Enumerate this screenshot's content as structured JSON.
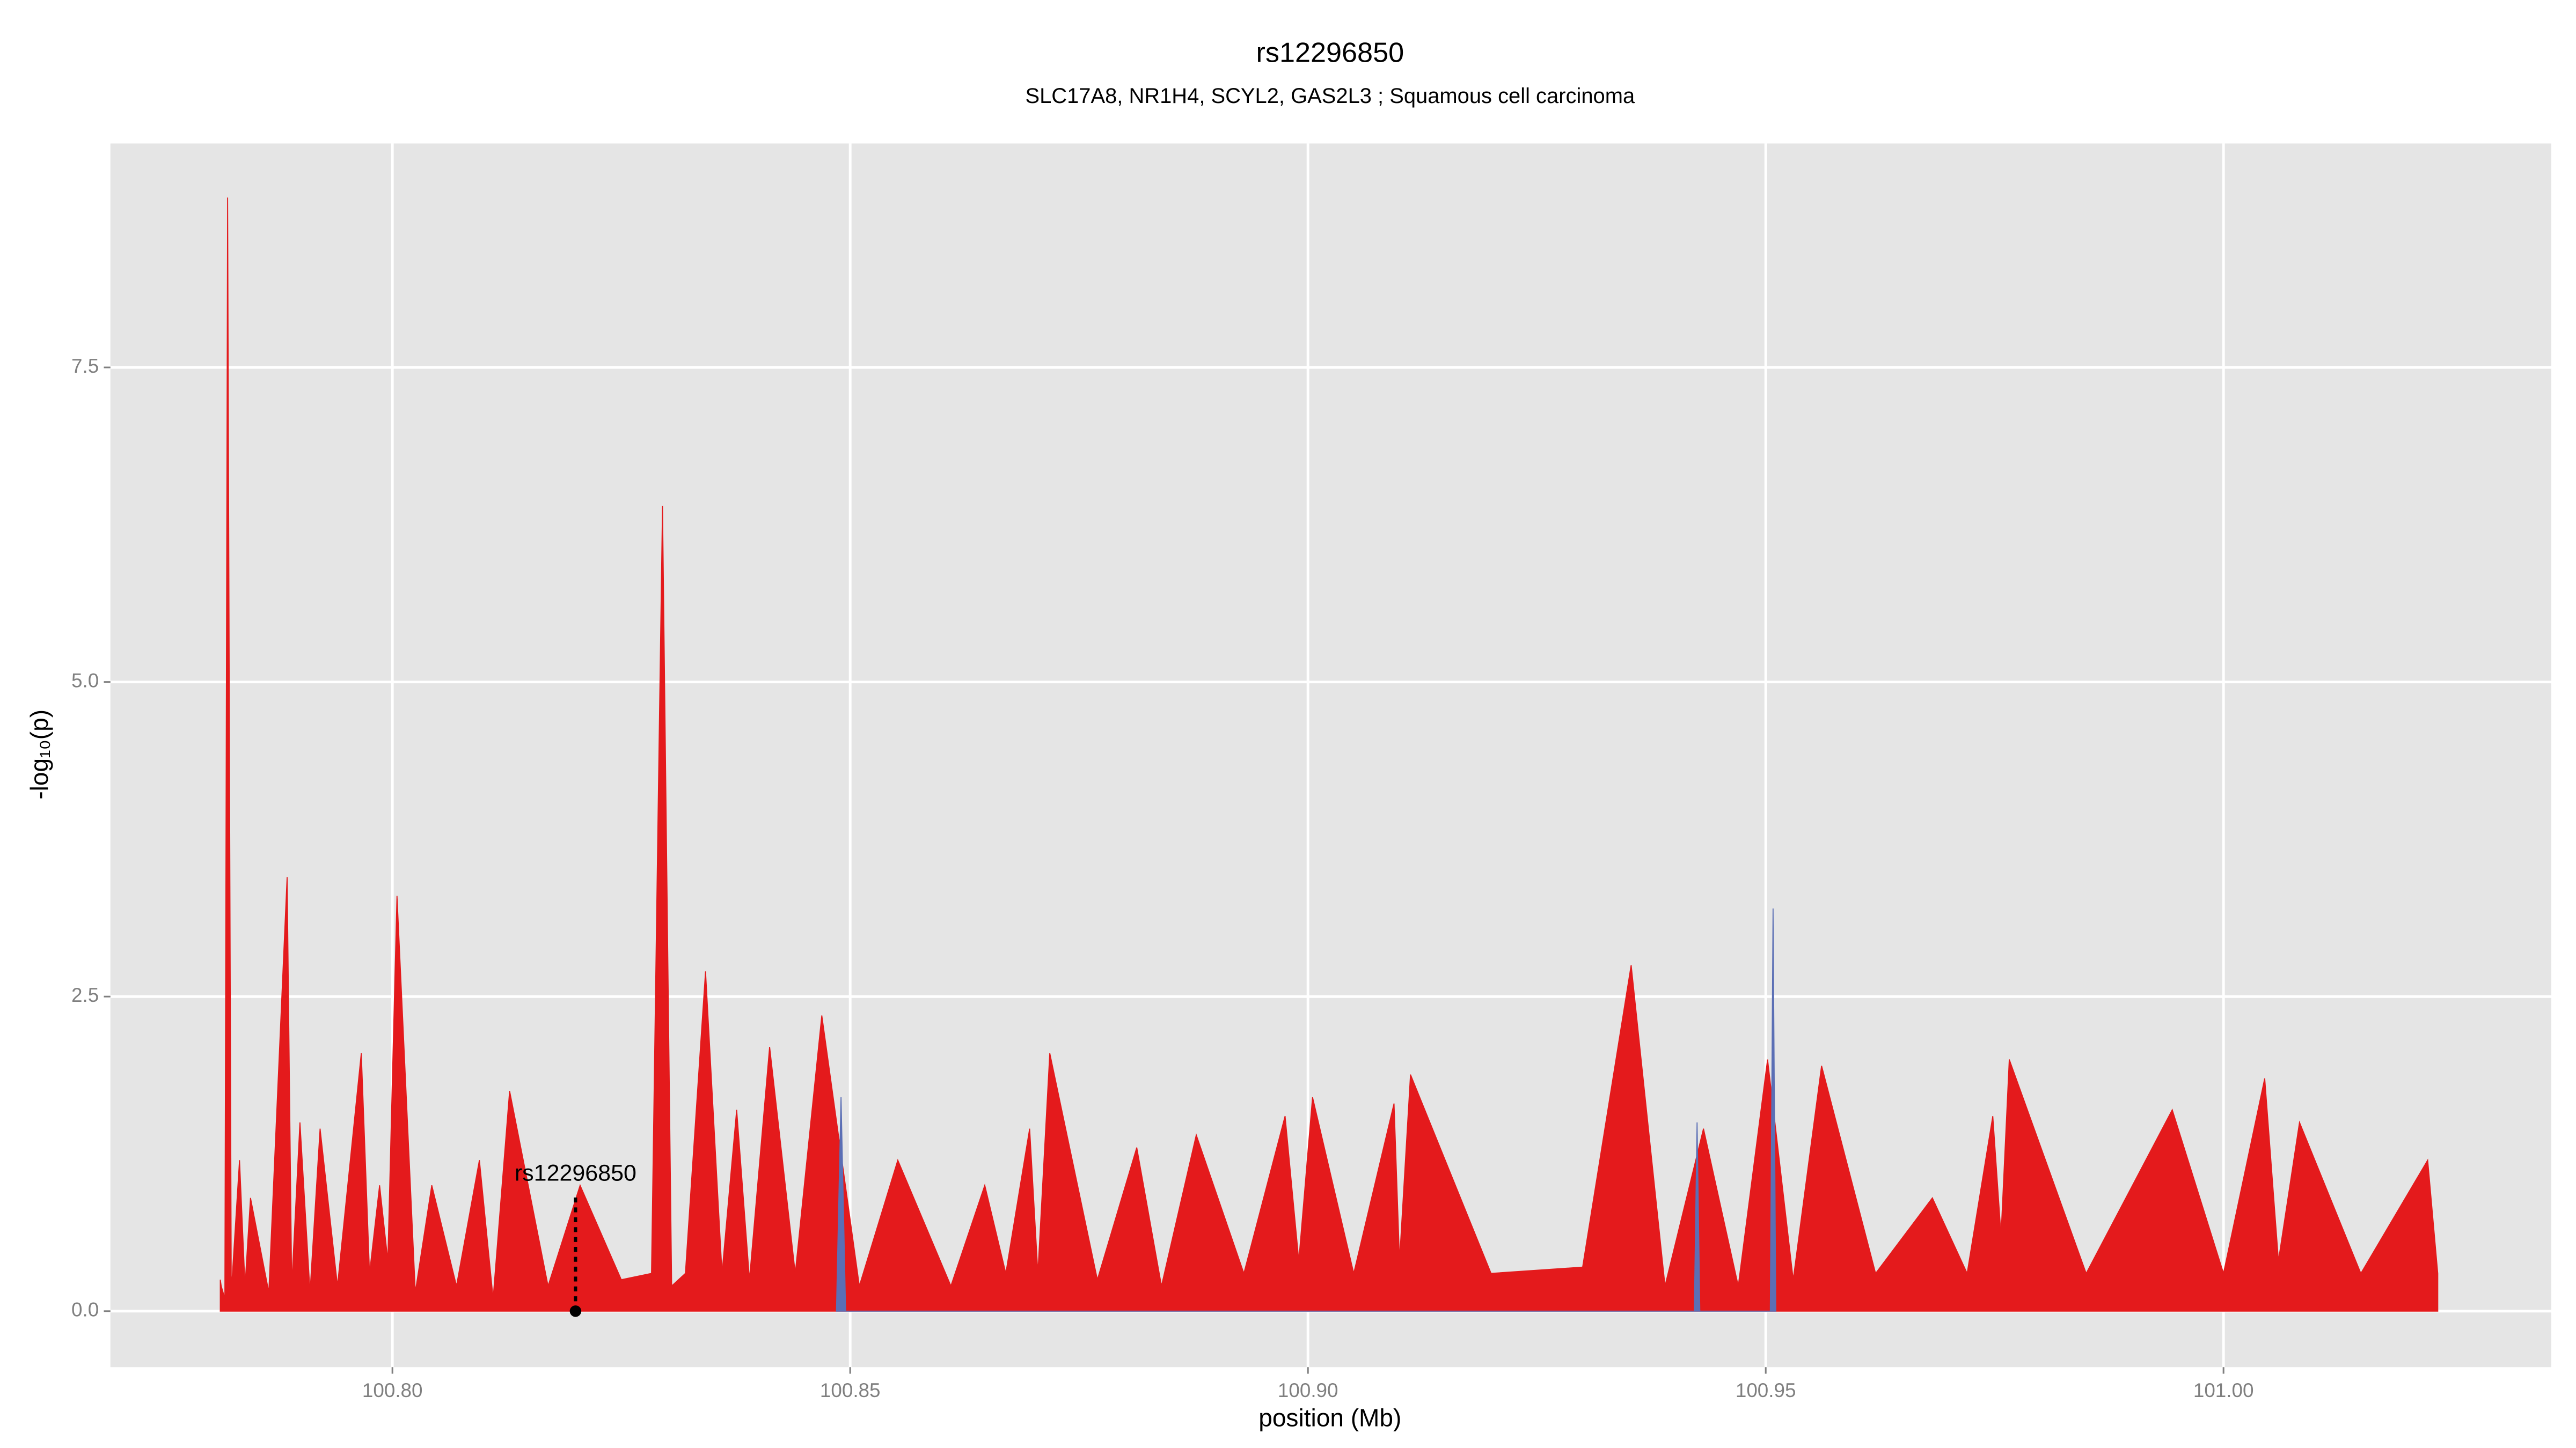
{
  "chart_data": {
    "type": "area",
    "title": "rs12296850",
    "subtitle": "SLC17A8, NR1H4, SCYL2, GAS2L3 ; Squamous cell carcinoma",
    "x_label": "position (Mb)",
    "y_label": "-log₁₀(p)",
    "xlim": [
      100.7692,
      101.0358
    ],
    "ylim": [
      -0.445,
      9.28
    ],
    "xticks": [
      {
        "value": 100.8,
        "label": "100.80"
      },
      {
        "value": 100.85,
        "label": "100.85"
      },
      {
        "value": 100.9,
        "label": "100.90"
      },
      {
        "value": 100.95,
        "label": "100.95"
      },
      {
        "value": 101.0,
        "label": "101.00"
      }
    ],
    "yticks": [
      {
        "value": 0,
        "label": "0.0"
      },
      {
        "value": 2.5,
        "label": "2.5"
      },
      {
        "value": 5,
        "label": "5.0"
      },
      {
        "value": 7.5,
        "label": "7.5"
      }
    ],
    "grid": true,
    "series": [
      {
        "color": "#e41a1c",
        "x": [
          100.7812,
          100.7813,
          100.7817,
          100.782,
          100.7824,
          100.7833,
          100.7839,
          100.7845,
          100.7865,
          100.7885,
          100.789,
          100.7899,
          100.791,
          100.7921,
          100.794,
          100.7966,
          100.7975,
          100.7986,
          100.7995,
          100.8005,
          100.8025,
          100.8043,
          100.807,
          100.8095,
          100.811,
          100.8128,
          100.817,
          100.8205,
          100.825,
          100.8283,
          100.8295,
          100.8305,
          100.832,
          100.8342,
          100.836,
          100.8376,
          100.839,
          100.8412,
          100.844,
          100.8469,
          100.851,
          100.8552,
          100.861,
          100.8647,
          100.867,
          100.8696,
          100.8705,
          100.8718,
          100.877,
          100.8813,
          100.884,
          100.8878,
          100.893,
          100.8975,
          100.899,
          100.9005,
          100.905,
          100.9094,
          100.91,
          100.9112,
          100.92,
          100.93,
          100.9353,
          100.939,
          100.9432,
          100.947,
          100.9502,
          100.953,
          100.9561,
          100.962,
          100.9682,
          100.972,
          100.9748,
          100.9757,
          100.9766,
          100.985,
          100.9944,
          101.0,
          101.0045,
          101.006,
          101.0083,
          101.015,
          101.0223,
          101.0234
        ],
        "values": [
          0.25,
          0.2,
          0.1,
          8.85,
          0.15,
          1.2,
          0.2,
          0.9,
          0.15,
          3.45,
          0.2,
          1.5,
          0.15,
          1.45,
          0.2,
          2.05,
          0.3,
          1.0,
          0.4,
          3.3,
          0.15,
          1.0,
          0.2,
          1.2,
          0.1,
          1.75,
          0.2,
          1.0,
          0.25,
          0.3,
          6.4,
          0.2,
          0.3,
          2.7,
          0.3,
          1.6,
          0.25,
          2.1,
          0.3,
          2.35,
          0.2,
          1.2,
          0.2,
          1.0,
          0.3,
          1.45,
          0.3,
          2.05,
          0.25,
          1.3,
          0.2,
          1.4,
          0.3,
          1.55,
          0.4,
          1.7,
          0.3,
          1.65,
          0.4,
          1.88,
          0.3,
          0.35,
          2.75,
          0.2,
          1.45,
          0.2,
          2.0,
          0.25,
          1.95,
          0.3,
          0.9,
          0.3,
          1.55,
          0.6,
          2.0,
          0.3,
          1.6,
          0.3,
          1.85,
          0.4,
          1.5,
          0.3,
          1.2,
          0.3
        ]
      },
      {
        "color": "#5b6fb5",
        "x": [
          100.8485,
          100.849,
          100.8495,
          100.9422,
          100.9425,
          100.9428,
          100.9505,
          100.9508,
          100.9511
        ],
        "values": [
          0,
          1.7,
          0,
          0,
          1.5,
          0,
          0,
          3.2,
          0
        ]
      }
    ],
    "annotation": {
      "text": "rs12296850",
      "x": 100.82,
      "y": 0
    }
  }
}
